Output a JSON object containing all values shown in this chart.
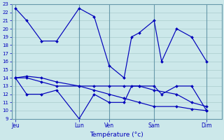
{
  "title": "Température (°c)",
  "bg_color": "#cce8ea",
  "line_color": "#0000bb",
  "grid_color": "#aacccc",
  "vline_color": "#6699aa",
  "ylim": [
    9,
    23
  ],
  "yticks": [
    9,
    10,
    11,
    12,
    13,
    14,
    15,
    16,
    17,
    18,
    19,
    20,
    21,
    22,
    23
  ],
  "xlim": [
    0,
    28
  ],
  "x_day_positions": [
    0.5,
    9,
    13,
    19,
    26
  ],
  "x_day_labels": [
    "Jeu",
    "Lun",
    "Ven",
    "Sam",
    "Dim"
  ],
  "x_vlines": [
    0.5,
    9,
    13,
    19,
    26
  ],
  "series": [
    {
      "x": [
        0.5,
        2,
        4,
        6,
        9,
        11,
        13,
        15,
        16,
        17,
        19,
        20,
        22,
        24,
        26
      ],
      "y": [
        22.5,
        21,
        18.5,
        18.5,
        22.5,
        21.5,
        15.5,
        14,
        19,
        19.5,
        21,
        16,
        20,
        19,
        16
      ]
    },
    {
      "x": [
        0.5,
        2,
        4,
        6,
        9,
        11,
        13,
        15,
        16,
        17,
        19,
        20,
        22,
        24,
        26
      ],
      "y": [
        14,
        12,
        12,
        12.5,
        9,
        12,
        11,
        11,
        13,
        13,
        13,
        12,
        13,
        13,
        10
      ]
    },
    {
      "x": [
        0.5,
        2,
        4,
        6,
        9,
        11,
        13,
        15,
        17,
        19,
        22,
        24,
        26
      ],
      "y": [
        14,
        14,
        13.5,
        13,
        13,
        13,
        13,
        13,
        13,
        12.5,
        12,
        11,
        10.5
      ]
    },
    {
      "x": [
        0.5,
        2,
        4,
        6,
        9,
        11,
        13,
        15,
        17,
        19,
        22,
        24,
        26
      ],
      "y": [
        14,
        14.2,
        14,
        13.5,
        13,
        12.5,
        12,
        11.5,
        11,
        10.5,
        10.5,
        10.2,
        10
      ]
    }
  ],
  "figsize": [
    3.2,
    2.0
  ],
  "dpi": 100
}
